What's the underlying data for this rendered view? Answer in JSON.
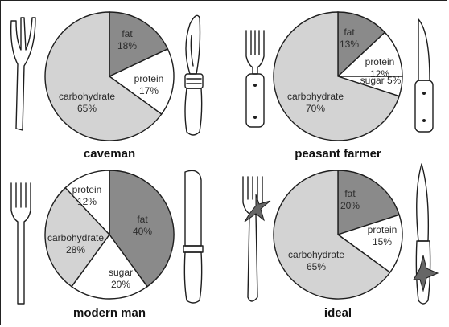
{
  "chart_data": [
    {
      "type": "pie",
      "title": "caveman",
      "slices": [
        {
          "label": "fat",
          "value": 18,
          "color": "#8a8a8a"
        },
        {
          "label": "protein",
          "value": 17,
          "color": "#ffffff"
        },
        {
          "label": "carbohydrate",
          "value": 65,
          "color": "#d3d3d3"
        }
      ],
      "cutlery": {
        "left": "split-stick-fork-icon",
        "right": "bone-handle-knife-icon"
      }
    },
    {
      "type": "pie",
      "title": "peasant farmer",
      "slices": [
        {
          "label": "fat",
          "value": 13,
          "color": "#8a8a8a"
        },
        {
          "label": "protein",
          "value": 12,
          "color": "#ffffff"
        },
        {
          "label": "sugar",
          "value": 5,
          "color": "#ffffff"
        },
        {
          "label": "carbohydrate",
          "value": 70,
          "color": "#d3d3d3"
        }
      ],
      "cutlery": {
        "left": "wooden-fork-icon",
        "right": "wooden-knife-icon"
      }
    },
    {
      "type": "pie",
      "title": "modern man",
      "slices": [
        {
          "label": "fat",
          "value": 40,
          "color": "#8a8a8a"
        },
        {
          "label": "sugar",
          "value": 20,
          "color": "#ffffff"
        },
        {
          "label": "carbohydrate",
          "value": 28,
          "color": "#d3d3d3"
        },
        {
          "label": "protein",
          "value": 12,
          "color": "#ffffff"
        }
      ],
      "cutlery": {
        "left": "steel-fork-icon",
        "right": "steel-knife-icon"
      }
    },
    {
      "type": "pie",
      "title": "ideal",
      "slices": [
        {
          "label": "fat",
          "value": 20,
          "color": "#8a8a8a"
        },
        {
          "label": "protein",
          "value": 15,
          "color": "#ffffff"
        },
        {
          "label": "carbohydrate",
          "value": 65,
          "color": "#d3d3d3"
        }
      ],
      "cutlery": {
        "left": "starred-fork-icon",
        "right": "starred-knife-icon"
      }
    }
  ]
}
